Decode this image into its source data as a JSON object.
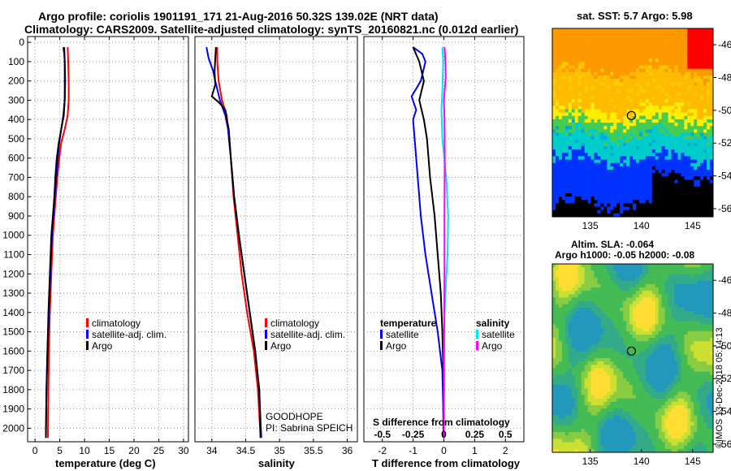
{
  "header": {
    "line1": "Argo profile: coriolis 1901191_171 21-Aug-2016 50.32S 139.02E (NRT data)",
    "line2": "Climatology: CARS2009. Satellite-adjusted climatology: synTS_20160821.nc (0.012d earlier)"
  },
  "right": {
    "sst_title": "sat. SST: 5.7 Argo: 5.98",
    "sla_title1": "Altim. SLA: -0.064",
    "sla_title2": "Argo h1000: -0.05 h2000: -0.08"
  },
  "credit": "©IMOS 13-Dec-2018 05:14:13",
  "colors": {
    "climatology": "#ff0000",
    "satellite": "#0000ff",
    "argo": "#000000",
    "sal_satellite": "#00e5ee",
    "sal_argo": "#ff00ff"
  },
  "legends": {
    "temp": [
      "climatology",
      "satellite-adj. clim.",
      "Argo"
    ],
    "sal": [
      "climatology",
      "satellite-adj. clim.",
      "Argo"
    ],
    "diff_left_head": "temperature",
    "diff_left": [
      "satellite",
      "Argo"
    ],
    "diff_right_head": "salinity",
    "diff_right": [
      "satellite",
      "Argo"
    ]
  },
  "sal_annotation": [
    "GOODHOPE",
    "PI: Sabrina SPEICH"
  ],
  "diff_s_label": "S difference from climatology",
  "chart_data": [
    {
      "type": "line",
      "xlabel": "temperature (deg C)",
      "xticks": [
        "0",
        "5",
        "10",
        "15",
        "20",
        "25",
        "30"
      ],
      "xlim": [
        -1.5,
        31
      ],
      "yticks": [
        "0",
        "100",
        "200",
        "300",
        "400",
        "500",
        "600",
        "700",
        "800",
        "900",
        "1000",
        "1100",
        "1200",
        "1300",
        "1400",
        "1500",
        "1600",
        "1700",
        "1800",
        "1900",
        "2000"
      ],
      "ylim": [
        -30,
        2070
      ],
      "series": [
        {
          "name": "climatology",
          "color": "#ff0000",
          "points": [
            [
              6.6,
              25
            ],
            [
              6.7,
              100
            ],
            [
              6.8,
              200
            ],
            [
              6.8,
              300
            ],
            [
              6.6,
              380
            ],
            [
              6.0,
              450
            ],
            [
              5.3,
              520
            ],
            [
              4.9,
              600
            ],
            [
              4.5,
              700
            ],
            [
              4.2,
              800
            ],
            [
              3.9,
              900
            ],
            [
              3.6,
              1000
            ],
            [
              3.3,
              1200
            ],
            [
              3.0,
              1400
            ],
            [
              2.8,
              1600
            ],
            [
              2.7,
              1800
            ],
            [
              2.6,
              2050
            ]
          ]
        },
        {
          "name": "satellite-adj. clim.",
          "color": "#0000ff",
          "points": [
            [
              5.7,
              25
            ],
            [
              5.9,
              60
            ],
            [
              6.0,
              100
            ],
            [
              6.1,
              200
            ],
            [
              6.0,
              300
            ],
            [
              5.7,
              380
            ],
            [
              5.3,
              450
            ],
            [
              4.9,
              520
            ],
            [
              4.6,
              600
            ],
            [
              4.3,
              700
            ],
            [
              4.0,
              800
            ],
            [
              3.7,
              900
            ],
            [
              3.4,
              1000
            ],
            [
              3.1,
              1200
            ],
            [
              2.8,
              1400
            ],
            [
              2.5,
              1600
            ],
            [
              2.3,
              1800
            ],
            [
              2.2,
              2050
            ]
          ]
        },
        {
          "name": "Argo",
          "color": "#000000",
          "points": [
            [
              5.9,
              25
            ],
            [
              6.0,
              100
            ],
            [
              6.0,
              200
            ],
            [
              6.0,
              300
            ],
            [
              5.8,
              380
            ],
            [
              5.3,
              450
            ],
            [
              4.8,
              520
            ],
            [
              4.4,
              600
            ],
            [
              4.1,
              700
            ],
            [
              3.9,
              800
            ],
            [
              3.6,
              900
            ],
            [
              3.3,
              1000
            ],
            [
              3.0,
              1200
            ],
            [
              2.7,
              1400
            ],
            [
              2.5,
              1600
            ],
            [
              2.3,
              1800
            ],
            [
              2.2,
              2050
            ]
          ]
        }
      ]
    },
    {
      "type": "line",
      "xlabel": "salinity",
      "xticks": [
        "34",
        "34.5",
        "35",
        "35.5",
        "36"
      ],
      "xlim": [
        33.75,
        36.15
      ],
      "ylim": [
        -30,
        2070
      ],
      "series": [
        {
          "name": "climatology",
          "color": "#ff0000",
          "points": [
            [
              34.08,
              25
            ],
            [
              34.08,
              100
            ],
            [
              34.1,
              200
            ],
            [
              34.15,
              300
            ],
            [
              34.22,
              380
            ],
            [
              34.24,
              450
            ],
            [
              34.28,
              600
            ],
            [
              34.32,
              800
            ],
            [
              34.38,
              1000
            ],
            [
              34.44,
              1200
            ],
            [
              34.52,
              1400
            ],
            [
              34.62,
              1600
            ],
            [
              34.68,
              1800
            ],
            [
              34.72,
              2050
            ]
          ]
        },
        {
          "name": "satellite-adj. clim.",
          "color": "#0000ff",
          "points": [
            [
              33.92,
              25
            ],
            [
              33.95,
              80
            ],
            [
              34.02,
              150
            ],
            [
              34.05,
              200
            ],
            [
              34.12,
              300
            ],
            [
              34.2,
              380
            ],
            [
              34.24,
              450
            ],
            [
              34.28,
              600
            ],
            [
              34.33,
              800
            ],
            [
              34.4,
              1000
            ],
            [
              34.48,
              1200
            ],
            [
              34.56,
              1400
            ],
            [
              34.64,
              1600
            ],
            [
              34.7,
              1800
            ],
            [
              34.73,
              2050
            ]
          ]
        },
        {
          "name": "Argo",
          "color": "#000000",
          "points": [
            [
              34.06,
              25
            ],
            [
              34.04,
              150
            ],
            [
              34.05,
              220
            ],
            [
              34.0,
              280
            ],
            [
              34.1,
              310
            ],
            [
              34.2,
              350
            ],
            [
              34.22,
              400
            ],
            [
              34.25,
              450
            ],
            [
              34.28,
              600
            ],
            [
              34.33,
              800
            ],
            [
              34.4,
              1000
            ],
            [
              34.48,
              1200
            ],
            [
              34.56,
              1400
            ],
            [
              34.64,
              1600
            ],
            [
              34.7,
              1800
            ],
            [
              34.72,
              2050
            ]
          ]
        }
      ]
    },
    {
      "type": "line",
      "xlabel": "T difference from climatology",
      "xticks": [
        "-2",
        "-1",
        "0",
        "1",
        "2"
      ],
      "xlim": [
        -2.6,
        2.6
      ],
      "s_xticks": [
        "-0.5",
        "-0.25",
        "0",
        "0.25",
        "0.5"
      ],
      "ylim": [
        -30,
        2070
      ],
      "series": [
        {
          "name": "T satellite",
          "color": "#0000ff",
          "points": [
            [
              -1.0,
              25
            ],
            [
              -0.7,
              60
            ],
            [
              -0.6,
              100
            ],
            [
              -0.75,
              200
            ],
            [
              -1.05,
              280
            ],
            [
              -0.9,
              350
            ],
            [
              -1.0,
              400
            ],
            [
              -0.95,
              500
            ],
            [
              -0.85,
              700
            ],
            [
              -0.75,
              900
            ],
            [
              -0.6,
              1100
            ],
            [
              -0.4,
              1300
            ],
            [
              -0.2,
              1500
            ],
            [
              -0.05,
              1700
            ],
            [
              -0.02,
              1900
            ],
            [
              -0.01,
              2050
            ]
          ]
        },
        {
          "name": "T Argo",
          "color": "#000000",
          "points": [
            [
              -1.0,
              25
            ],
            [
              -0.8,
              100
            ],
            [
              -0.65,
              200
            ],
            [
              -0.8,
              300
            ],
            [
              -0.65,
              400
            ],
            [
              -0.55,
              500
            ],
            [
              -0.45,
              700
            ],
            [
              -0.3,
              900
            ],
            [
              -0.2,
              1100
            ],
            [
              -0.1,
              1300
            ],
            [
              -0.05,
              1500
            ],
            [
              -0.02,
              1700
            ],
            [
              -0.01,
              2050
            ]
          ]
        },
        {
          "name": "S satellite",
          "color": "#00e5ee",
          "points": [
            [
              -0.05,
              25
            ],
            [
              -0.02,
              100
            ],
            [
              -0.05,
              250
            ],
            [
              -0.08,
              350
            ],
            [
              -0.05,
              500
            ],
            [
              0.08,
              700
            ],
            [
              0.14,
              900
            ],
            [
              0.12,
              1100
            ],
            [
              0.05,
              1300
            ],
            [
              0.0,
              1500
            ],
            [
              0.0,
              2050
            ]
          ]
        },
        {
          "name": "S Argo",
          "color": "#ff00ff",
          "points": [
            [
              0.02,
              25
            ],
            [
              0.05,
              100
            ],
            [
              0.06,
              180
            ],
            [
              0.0,
              300
            ],
            [
              0.02,
              400
            ],
            [
              0.03,
              600
            ],
            [
              0.02,
              900
            ],
            [
              0.02,
              1200
            ],
            [
              0.01,
              1500
            ],
            [
              0.0,
              2050
            ]
          ]
        }
      ]
    }
  ],
  "maps": {
    "xticks": [
      "135",
      "140",
      "145"
    ],
    "yticks": [
      "-46",
      "-48",
      "-50",
      "-52",
      "-54",
      "-56"
    ]
  }
}
